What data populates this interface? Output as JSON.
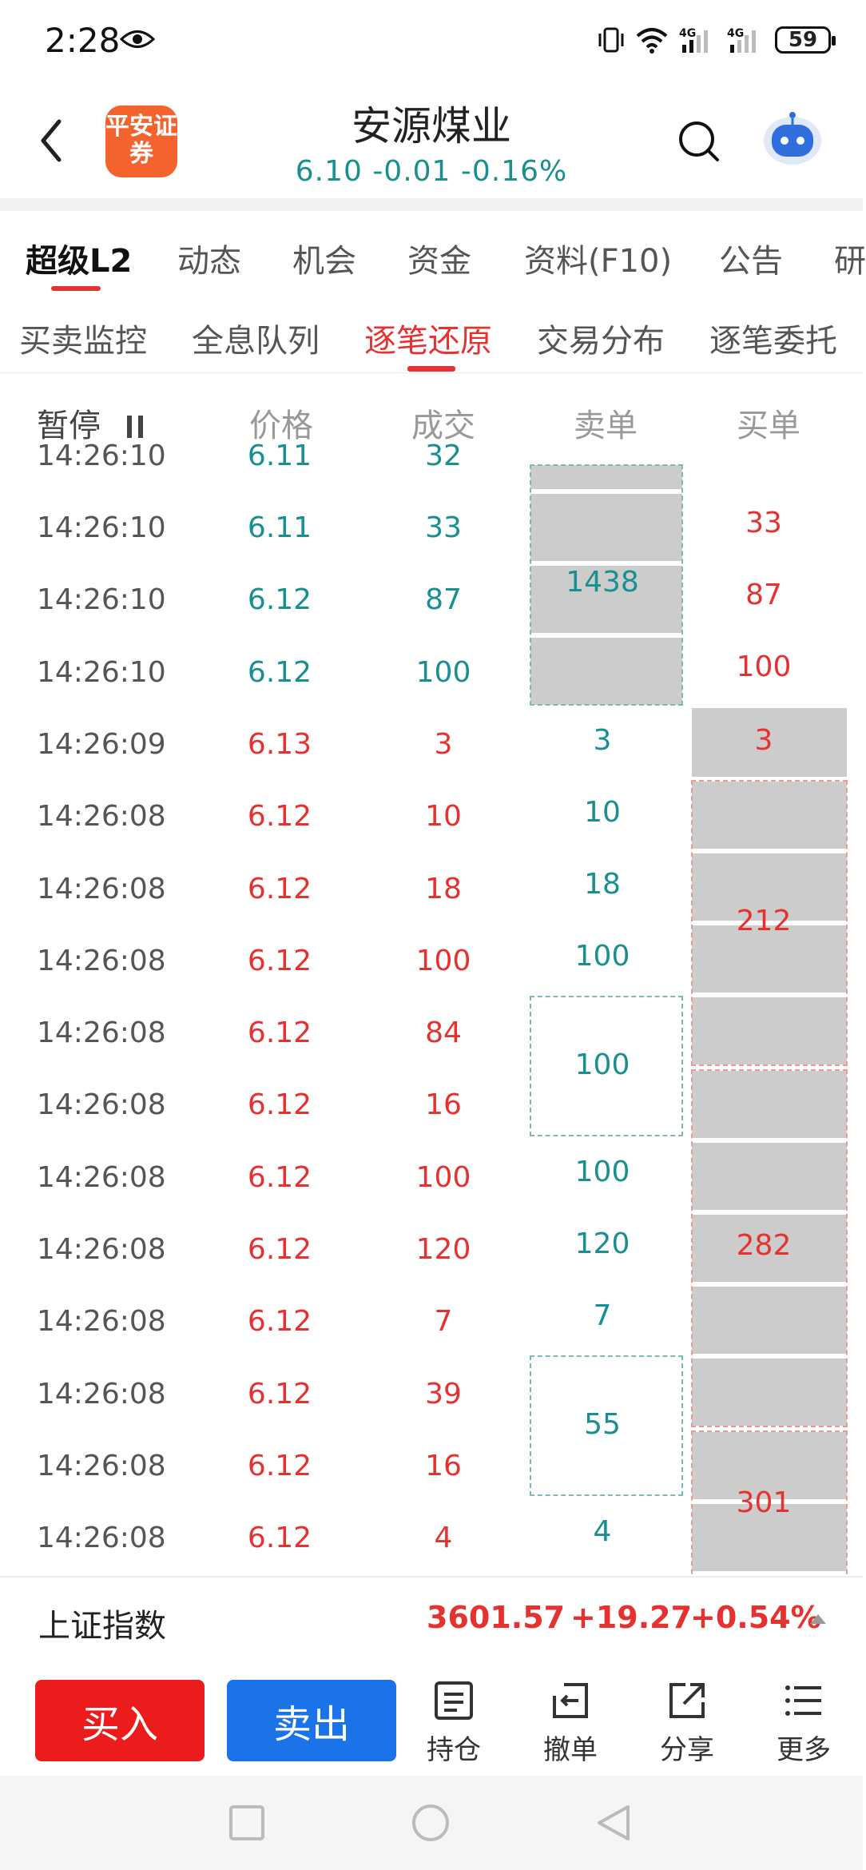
{
  "status_bar": {
    "time": "2:28",
    "battery": "59"
  },
  "header": {
    "logo_text": "平安证券",
    "stock_name": "安源煤业",
    "quote": "6.10  -0.01  -0.16%"
  },
  "main_tabs": [
    "超级L2",
    "动态",
    "机会",
    "资金",
    "资料(F10)",
    "公告",
    "研"
  ],
  "sub_tabs": [
    "买卖监控",
    "全息队列",
    "逐笔还原",
    "交易分布",
    "逐笔委托"
  ],
  "columns": {
    "pause": "暂停",
    "price": "价格",
    "volume": "成交",
    "sell": "卖单",
    "buy": "买单"
  },
  "rows": [
    {
      "time": "14:26:10",
      "price": "6.11",
      "volume": "33"
    },
    {
      "time": "14:26:10",
      "price": "6.12",
      "volume": "87"
    },
    {
      "time": "14:26:10",
      "price": "6.12",
      "volume": "100"
    },
    {
      "time": "14:26:09",
      "price": "6.13",
      "volume": "3"
    },
    {
      "time": "14:26:08",
      "price": "6.12",
      "volume": "10"
    },
    {
      "time": "14:26:08",
      "price": "6.12",
      "volume": "18"
    },
    {
      "time": "14:26:08",
      "price": "6.12",
      "volume": "100"
    },
    {
      "time": "14:26:08",
      "price": "6.12",
      "volume": "84"
    },
    {
      "time": "14:26:08",
      "price": "6.12",
      "volume": "16"
    },
    {
      "time": "14:26:08",
      "price": "6.12",
      "volume": "100"
    },
    {
      "time": "14:26:08",
      "price": "6.12",
      "volume": "120"
    },
    {
      "time": "14:26:08",
      "price": "6.12",
      "volume": "7"
    },
    {
      "time": "14:26:08",
      "price": "6.12",
      "volume": "39"
    },
    {
      "time": "14:26:08",
      "price": "6.12",
      "volume": "16"
    },
    {
      "time": "14:26:08",
      "price": "6.12",
      "volume": "4"
    }
  ],
  "partial_row": {
    "time": "14:26:10",
    "price": "6.11",
    "volume": "32"
  },
  "sell_orders": [
    "1438",
    "3",
    "10",
    "18",
    "100",
    "100",
    "100",
    "120",
    "7",
    "55",
    "4"
  ],
  "buy_orders": [
    "33",
    "87",
    "100",
    "3",
    "212",
    "282",
    "301"
  ],
  "index": {
    "name": "上证指数",
    "value": "3601.57",
    "change": "+19.27",
    "pct": "+0.54%"
  },
  "toolbar": {
    "buy": "买入",
    "sell": "卖出",
    "position": "持仓",
    "cancel": "撤单",
    "share": "分享",
    "more": "更多"
  },
  "colors": {
    "red": "#e5312f",
    "teal": "#1a8f8f",
    "buy_button": "#ec1c1c",
    "sell_button": "#1a73e8",
    "logo": "#f4622d"
  }
}
